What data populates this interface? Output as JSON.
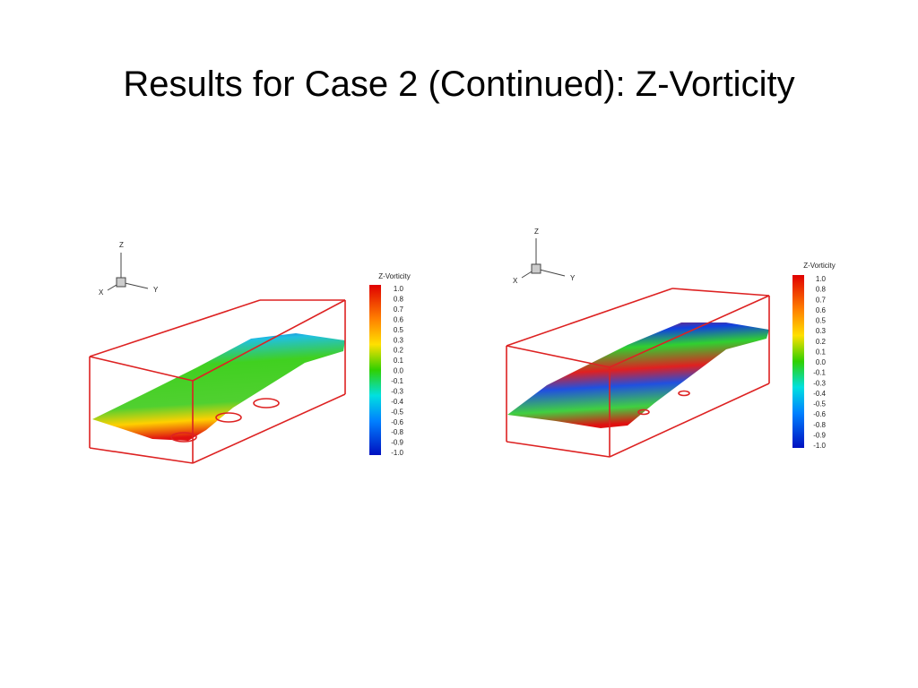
{
  "title": "Results for Case 2 (Continued): Z-Vorticity",
  "figures": [
    {
      "axes": {
        "z": "Z",
        "x": "X",
        "y": "Y"
      },
      "colorbar": {
        "title": "Z-Vorticity",
        "labels": [
          "1.0",
          "0.8",
          "0.7",
          "0.6",
          "0.5",
          "0.3",
          "0.2",
          "0.1",
          "0.0",
          "-0.1",
          "-0.3",
          "-0.4",
          "-0.5",
          "-0.6",
          "-0.8",
          "-0.9",
          "-1.0"
        ]
      }
    },
    {
      "axes": {
        "z": "Z",
        "x": "X",
        "y": "Y"
      },
      "colorbar": {
        "title": "Z-Vorticity",
        "labels": [
          "1.0",
          "0.8",
          "0.7",
          "0.6",
          "0.5",
          "0.3",
          "0.2",
          "0.1",
          "0.0",
          "-0.1",
          "-0.3",
          "-0.4",
          "-0.5",
          "-0.6",
          "-0.8",
          "-0.9",
          "-1.0"
        ]
      }
    }
  ]
}
